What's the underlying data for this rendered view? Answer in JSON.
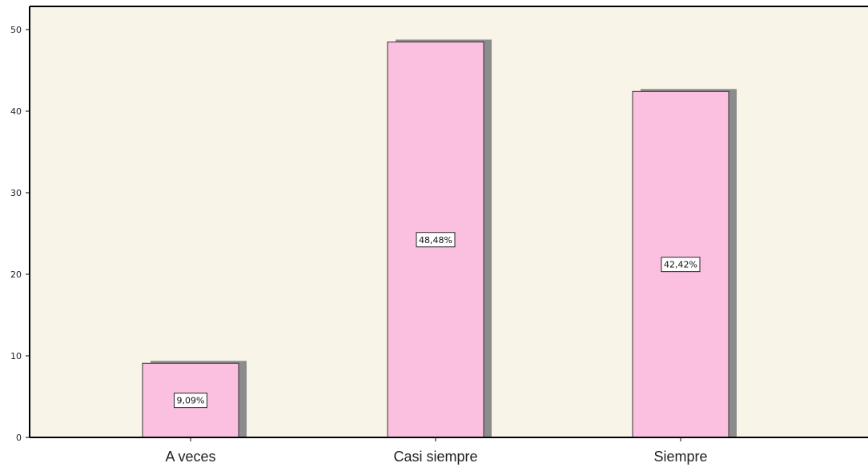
{
  "chart_data": {
    "type": "bar",
    "categories": [
      "A veces",
      "Casi siempre",
      "Siempre"
    ],
    "values": [
      9.09,
      48.48,
      42.42
    ],
    "data_labels": [
      "9,09%",
      "48,48%",
      "42,42%"
    ],
    "title": "",
    "xlabel": "",
    "ylabel": "",
    "ylim": [
      0,
      52
    ],
    "yticks": [
      0,
      10,
      20,
      30,
      40,
      50
    ],
    "grid": false,
    "legend": "none",
    "colors": {
      "bar_fill": "#fbc0e0",
      "bar_stroke": "#333333",
      "shadow": "#8c8c8c",
      "plot_background": "#f8f4e8",
      "axis": "#000000"
    }
  }
}
